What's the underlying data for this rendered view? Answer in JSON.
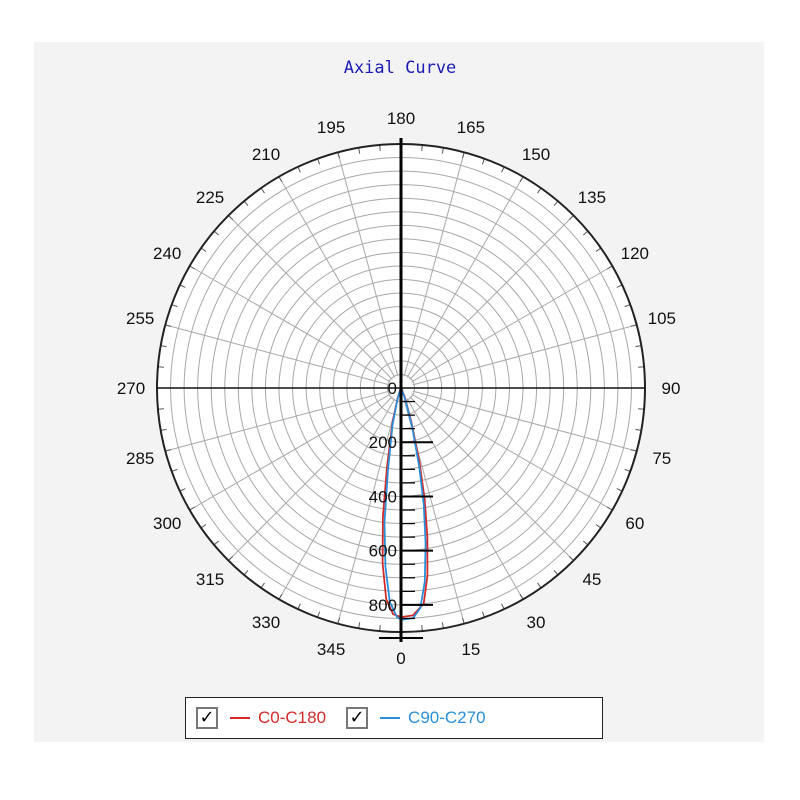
{
  "title": "Axial Curve",
  "legend": {
    "items": [
      {
        "label": "C0-C180",
        "checked_glyph": "✓",
        "color": "#d42a2a",
        "icon": "checkbox-checked-icon"
      },
      {
        "label": "C90-C270",
        "checked_glyph": "✓",
        "color": "#2a8ed8",
        "icon": "checkbox-checked-icon"
      }
    ]
  },
  "chart_data": {
    "type": "polar-line",
    "title": "Axial Curve",
    "angle_labels": [
      "0",
      "15",
      "30",
      "45",
      "60",
      "75",
      "90",
      "105",
      "120",
      "135",
      "150",
      "165",
      "180",
      "195",
      "210",
      "225",
      "240",
      "255",
      "270",
      "285",
      "300",
      "315",
      "330",
      "345"
    ],
    "angle_values": [
      0,
      15,
      30,
      45,
      60,
      75,
      90,
      105,
      120,
      135,
      150,
      165,
      180,
      195,
      210,
      225,
      240,
      255,
      270,
      285,
      300,
      315,
      330,
      345
    ],
    "radial_labels": [
      "0",
      "200",
      "400",
      "600",
      "800"
    ],
    "radial_ticks": [
      0,
      200,
      400,
      600,
      800
    ],
    "rmax": 900,
    "grid": true,
    "legend_position": "bottom-center",
    "series": [
      {
        "name": "C0-C180",
        "color": "#d42a2a",
        "points": [
          [
            0,
            845
          ],
          [
            3,
            840
          ],
          [
            6,
            800
          ],
          [
            8,
            700
          ],
          [
            10,
            560
          ],
          [
            12,
            420
          ],
          [
            14,
            280
          ],
          [
            17,
            130
          ],
          [
            22,
            40
          ],
          [
            30,
            5
          ],
          [
            330,
            5
          ],
          [
            342,
            40
          ],
          [
            346,
            130
          ],
          [
            350,
            300
          ],
          [
            352,
            480
          ],
          [
            354,
            650
          ],
          [
            356,
            780
          ],
          [
            358,
            835
          ],
          [
            0,
            845
          ]
        ]
      },
      {
        "name": "C90-C270",
        "color": "#2a8ed8",
        "points": [
          [
            0,
            855
          ],
          [
            3,
            850
          ],
          [
            5,
            815
          ],
          [
            7,
            720
          ],
          [
            9,
            580
          ],
          [
            11,
            440
          ],
          [
            13,
            300
          ],
          [
            16,
            150
          ],
          [
            20,
            50
          ],
          [
            28,
            5
          ],
          [
            332,
            5
          ],
          [
            343,
            45
          ],
          [
            347,
            140
          ],
          [
            351,
            310
          ],
          [
            353,
            500
          ],
          [
            355,
            660
          ],
          [
            357,
            790
          ],
          [
            359,
            845
          ],
          [
            0,
            855
          ]
        ]
      }
    ]
  }
}
